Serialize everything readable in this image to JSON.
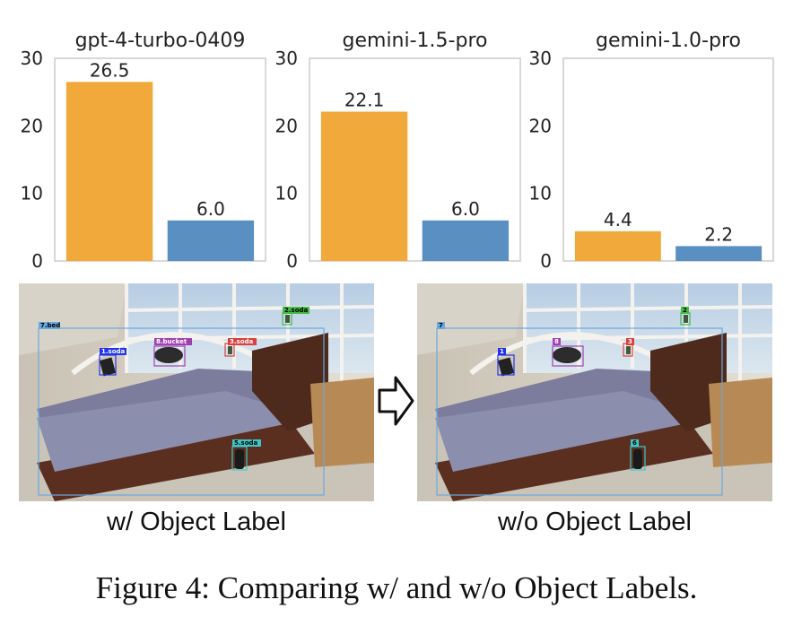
{
  "colors": {
    "with_label": "#f0a93a",
    "without_label": "#5a8fc2",
    "axis": "#cccccc",
    "text": "#222222"
  },
  "chart_data": [
    {
      "type": "bar",
      "title": "gpt-4-turbo-0409",
      "ylim": [
        0,
        30
      ],
      "yticks": [
        "0",
        "10",
        "20",
        "30"
      ],
      "values": [
        26.5,
        6.0
      ],
      "value_labels": [
        "26.5",
        "6.0"
      ],
      "grid": false
    },
    {
      "type": "bar",
      "title": "gemini-1.5-pro",
      "ylim": [
        0,
        30
      ],
      "yticks": [
        "0",
        "10",
        "20",
        "30"
      ],
      "values": [
        22.1,
        6.0
      ],
      "value_labels": [
        "22.1",
        "6.0"
      ],
      "grid": false
    },
    {
      "type": "bar",
      "title": "gemini-1.0-pro",
      "ylim": [
        0,
        30
      ],
      "yticks": [
        "0",
        "10",
        "20",
        "30"
      ],
      "values": [
        4.4,
        2.2
      ],
      "value_labels": [
        "4.4",
        "2.2"
      ],
      "grid": false
    }
  ],
  "scene_left": {
    "tags": [
      "7.bed",
      "2.soda",
      "1.soda",
      "8.bucket",
      "3.soda",
      "5.soda"
    ]
  },
  "scene_right": {
    "tags": [
      "7",
      "2",
      "1",
      "8",
      "3",
      "6"
    ]
  },
  "labels": {
    "left": "w/ Object Label",
    "right": "w/o Object Label"
  },
  "caption": "Figure 4: Comparing w/ and w/o Object Labels."
}
